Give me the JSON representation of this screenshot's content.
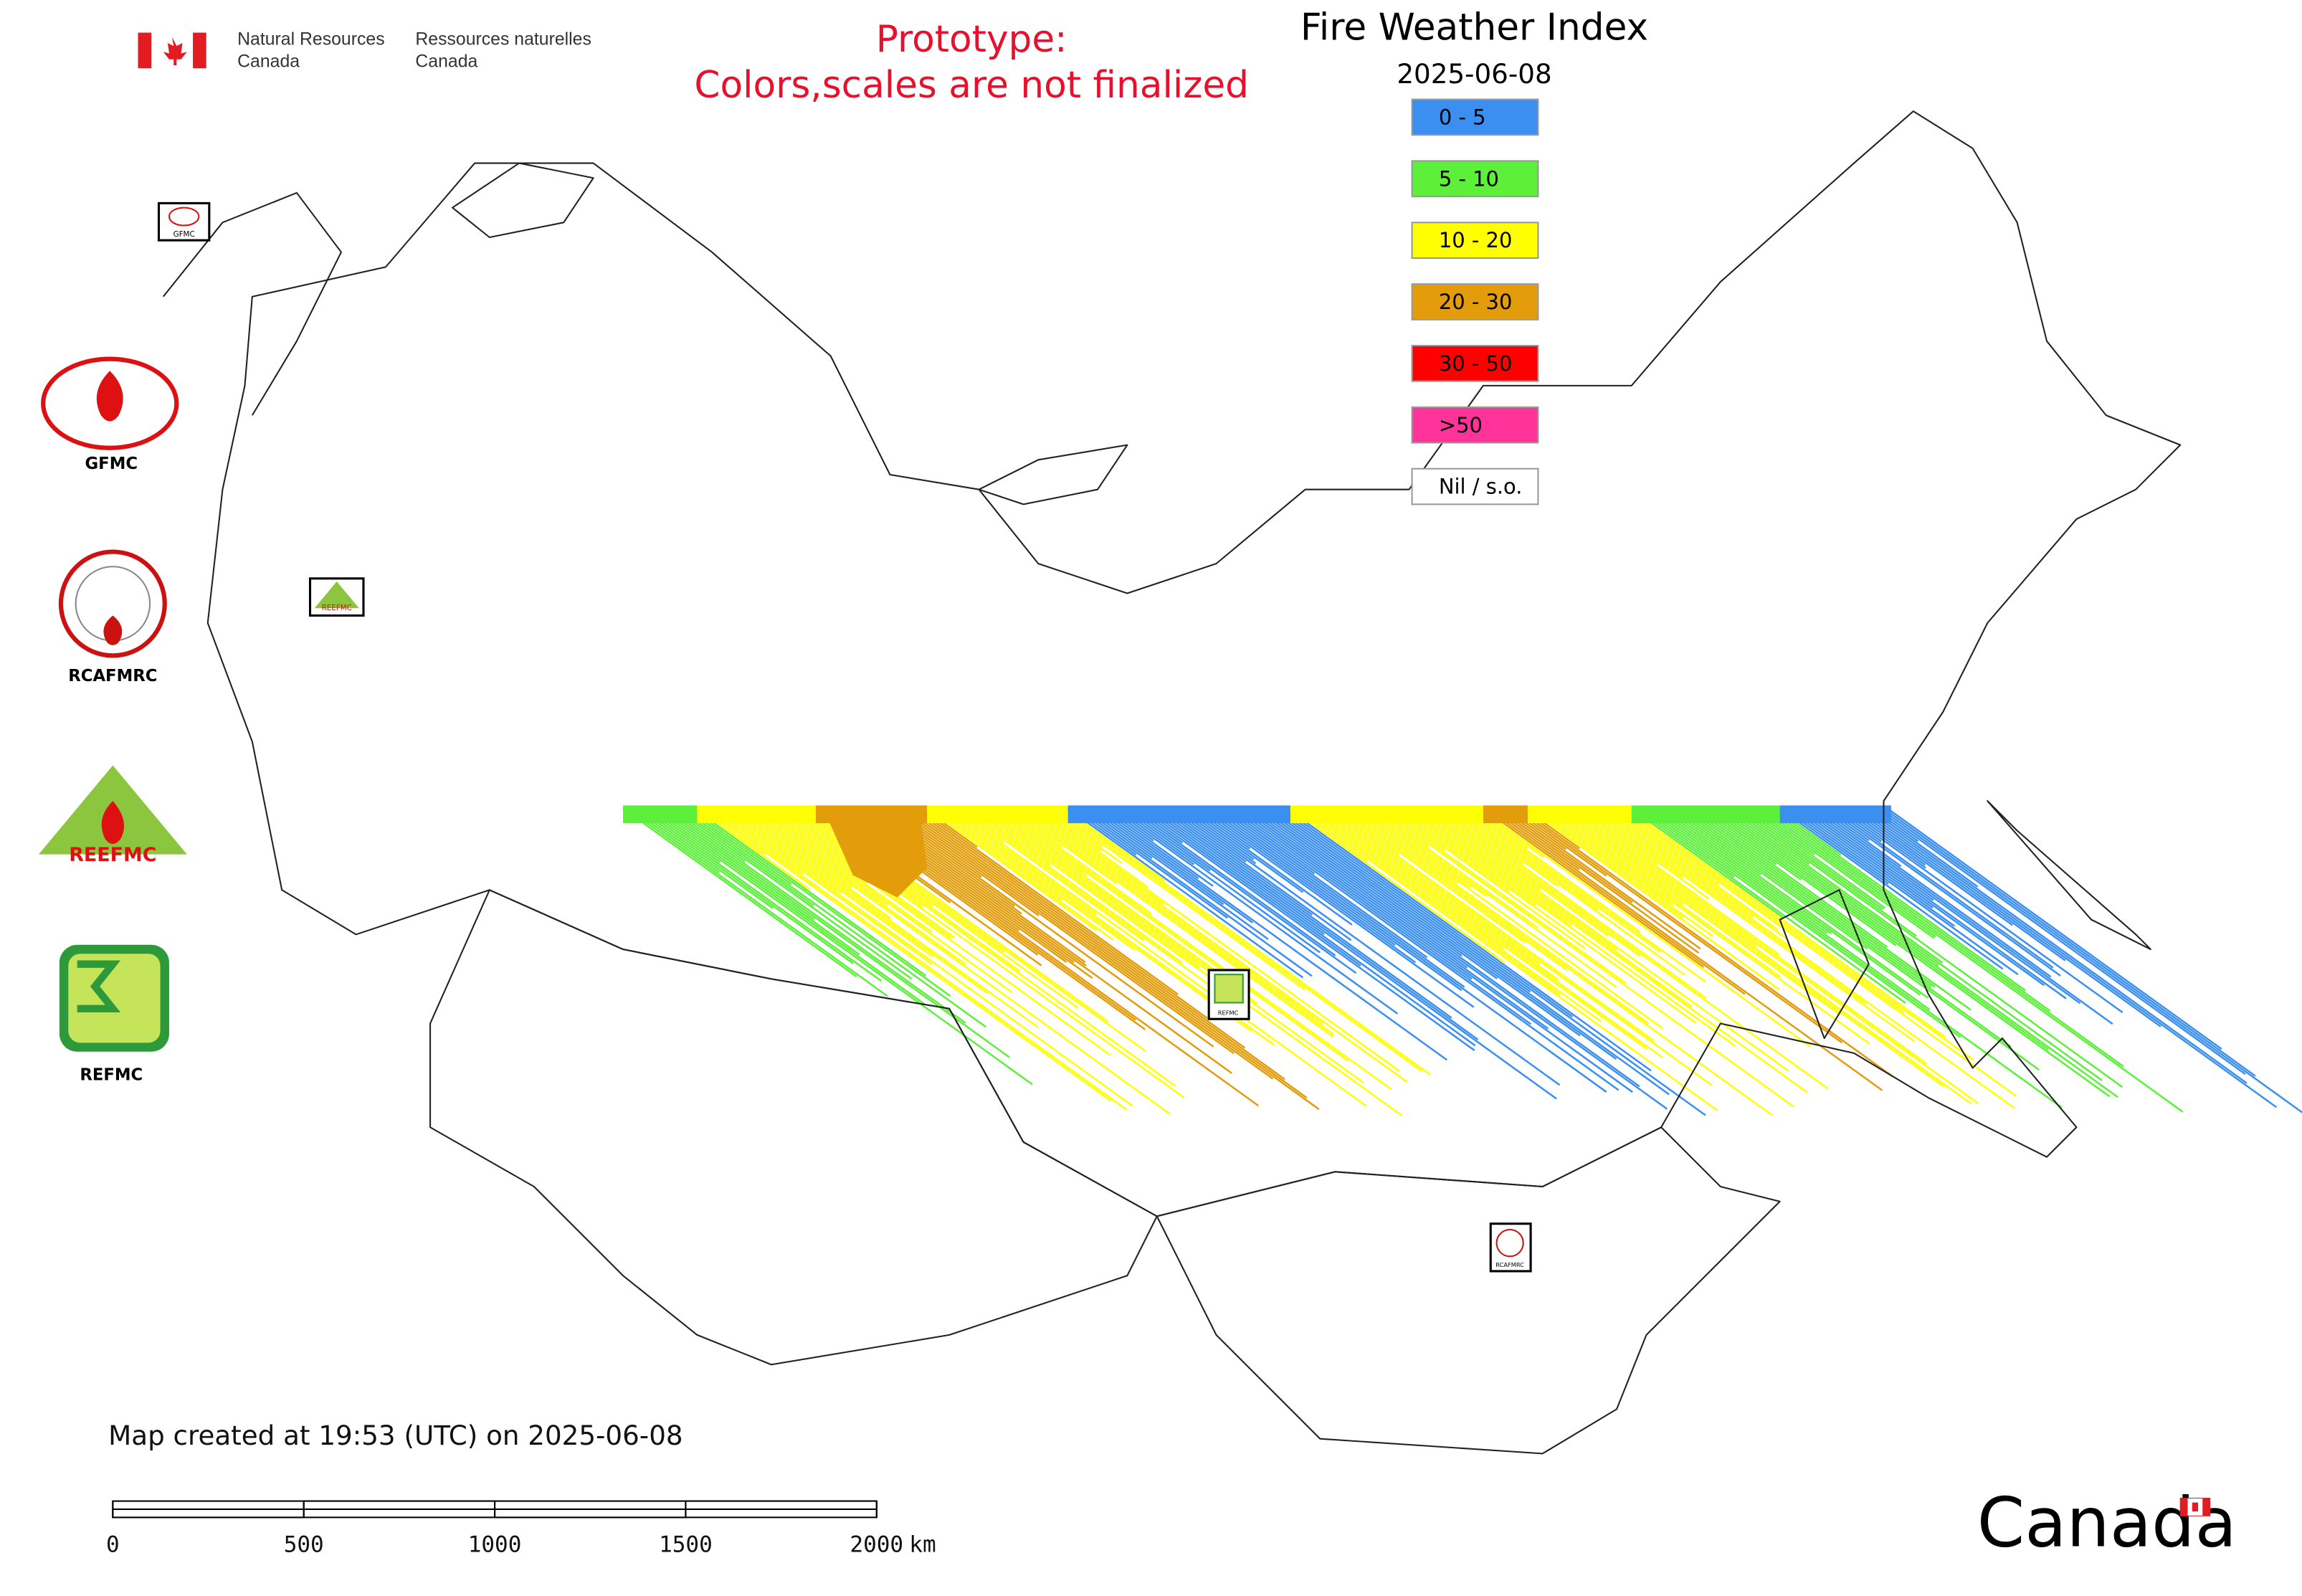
{
  "header": {
    "org_en": [
      "Natural Resources",
      "Canada"
    ],
    "org_fr": [
      "Ressources naturelles",
      "Canada"
    ],
    "notice": [
      "Prototype:",
      "Colors,scales are not finalized"
    ]
  },
  "title": "Fire Weather Index",
  "date": "2025-06-08",
  "legend": [
    {
      "label": "0 - 5",
      "color": "#3a8ff0"
    },
    {
      "label": "5 - 10",
      "color": "#5cf03a"
    },
    {
      "label": "10 - 20",
      "color": "#ffff00"
    },
    {
      "label": "20 - 30",
      "color": "#e39c0a"
    },
    {
      "label": "30 - 50",
      "color": "#ff0000"
    },
    {
      "label": ">50",
      "color": "#ff3399"
    },
    {
      "label": "Nil / s.o.",
      "color": "#ffffff"
    }
  ],
  "logos": {
    "gfmc": "GFMC",
    "rcafmrc": "RCAFMRC",
    "reefmc": "REEFMC",
    "refmc": "REFMC"
  },
  "footer": "Map created at 19:53 (UTC) on 2025-06-08",
  "scale_bar": {
    "ticks": [
      0,
      500,
      1000,
      1500,
      2000
    ],
    "unit": "km"
  },
  "wordmark": "Canada"
}
